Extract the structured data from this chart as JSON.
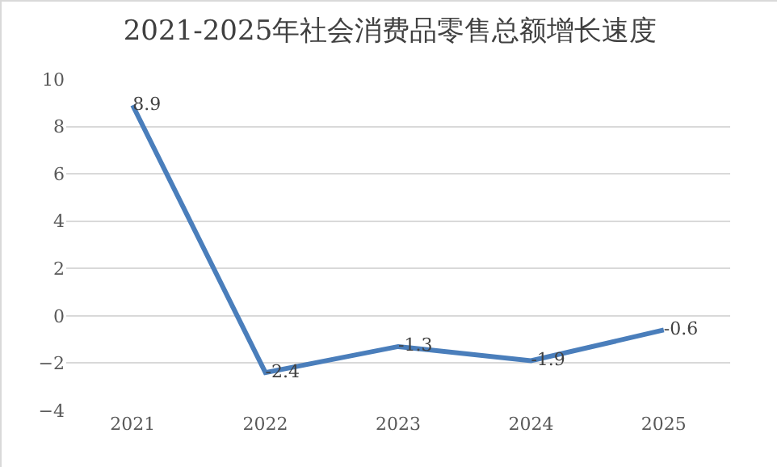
{
  "chart_data": {
    "type": "line",
    "title": "2021-2025年社会消费品零售总额增长速度",
    "categories": [
      "2021",
      "2022",
      "2023",
      "2024",
      "2025"
    ],
    "series": [
      {
        "color": "#4a7ebb",
        "values": [
          8.9,
          -2.4,
          -1.3,
          -1.9,
          -0.6
        ]
      }
    ],
    "ylim": [
      -4,
      10
    ],
    "yticks": [
      -4,
      -2,
      0,
      2,
      4,
      6,
      8,
      10
    ],
    "grid": "y",
    "legend": false,
    "marker": "none",
    "line_style": "solid",
    "data_labels": true
  }
}
